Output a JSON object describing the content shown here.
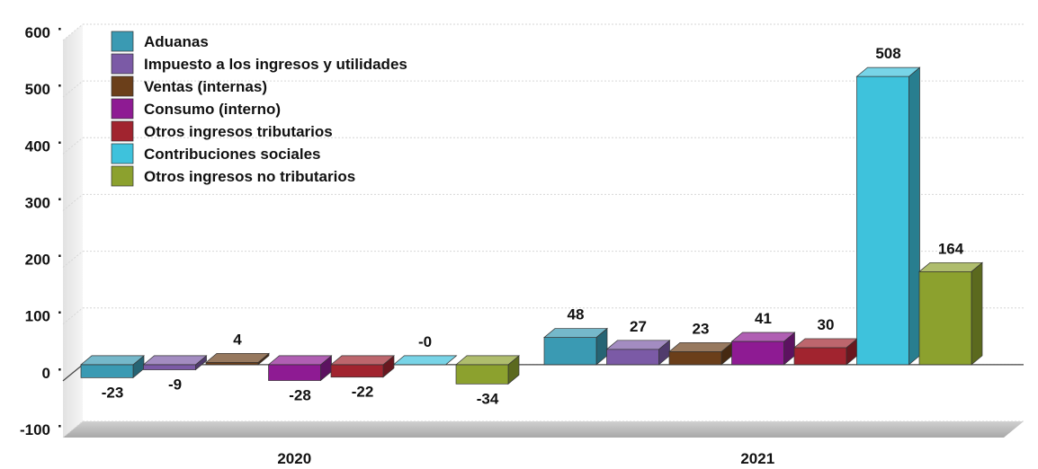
{
  "chart_data": {
    "type": "bar",
    "categories": [
      "2020",
      "2021"
    ],
    "series": [
      {
        "name": "Aduanas",
        "values": [
          -23,
          48
        ],
        "labels": [
          "-23",
          "48"
        ],
        "color": "#3a9ab3"
      },
      {
        "name": "Impuesto a los ingresos y utilidades",
        "values": [
          -9,
          27
        ],
        "labels": [
          "-9",
          "27"
        ],
        "color": "#7b5aa6"
      },
      {
        "name": "Ventas (internas)",
        "values": [
          4,
          23
        ],
        "labels": [
          "4",
          "23"
        ],
        "color": "#6b3f1a"
      },
      {
        "name": "Consumo (interno)",
        "values": [
          -28,
          41
        ],
        "labels": [
          "-28",
          "41"
        ],
        "color": "#8e1b93"
      },
      {
        "name": "Otros ingresos tributarios",
        "values": [
          -22,
          30
        ],
        "labels": [
          "-22",
          "30"
        ],
        "color": "#a1242f"
      },
      {
        "name": "Contribuciones sociales",
        "values": [
          0,
          508
        ],
        "labels": [
          "-0",
          "508"
        ],
        "color": "#3ec2dc"
      },
      {
        "name": "Otros ingresos no tributarios",
        "values": [
          -34,
          164
        ],
        "labels": [
          "-34",
          "164"
        ],
        "color": "#8ca12e"
      }
    ],
    "ylim": [
      -100,
      600
    ],
    "yticks": [
      -100,
      0,
      100,
      200,
      300,
      400,
      500,
      600
    ],
    "ytick_labels": [
      "-100",
      "0",
      "100",
      "200",
      "300",
      "400",
      "500",
      "600"
    ],
    "grid": true,
    "legend_position": "top-left",
    "style": "3d"
  }
}
